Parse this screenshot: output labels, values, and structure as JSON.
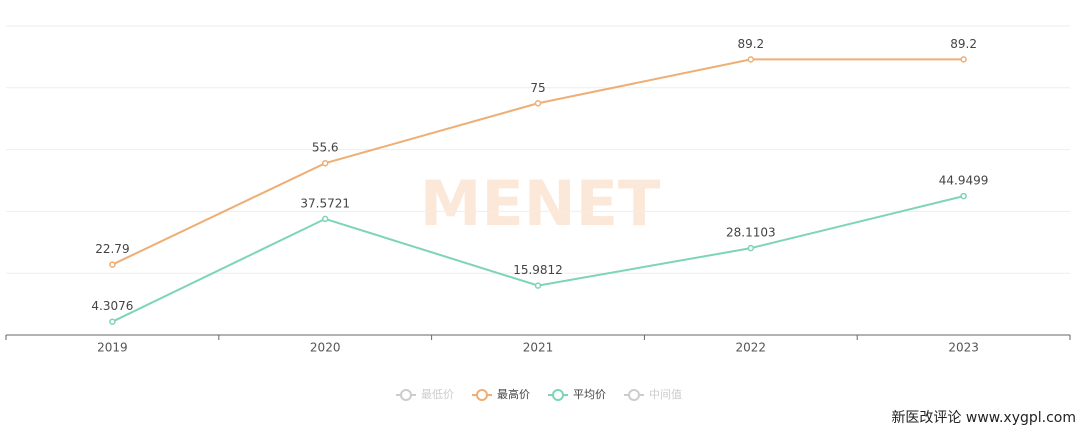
{
  "chart_data": {
    "type": "line",
    "categories": [
      "2019",
      "2020",
      "2021",
      "2022",
      "2023"
    ],
    "series": [
      {
        "name": "最低价",
        "color": "#cccccc",
        "values": [
          null,
          null,
          null,
          null,
          null
        ],
        "hidden": true
      },
      {
        "name": "最高价",
        "color": "#eeae74",
        "values": [
          22.79,
          55.6,
          75,
          89.2,
          89.2
        ]
      },
      {
        "name": "平均价",
        "color": "#7dd4b8",
        "values": [
          4.3076,
          37.5721,
          15.9812,
          28.1103,
          44.9499
        ]
      },
      {
        "name": "中间值",
        "color": "#cccccc",
        "values": [
          null,
          null,
          null,
          null,
          null
        ],
        "hidden": true
      }
    ],
    "ylim": [
      0,
      100
    ],
    "yticks": [
      0,
      20,
      40,
      60,
      80,
      100
    ],
    "grid": true,
    "legend": "bottom",
    "watermark": "MENET",
    "source": "新医改评论 www.xygpl.com"
  }
}
